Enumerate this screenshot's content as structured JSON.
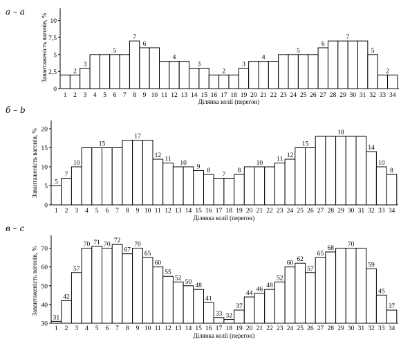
{
  "chart_data": [
    {
      "type": "bar",
      "panel_tag": "а – а",
      "xlabel": "Ділянка колії (перегон)",
      "ylabel": "Завантаженість вагонів, %",
      "ylim": [
        0,
        12
      ],
      "yticks": [
        0,
        2.5,
        5,
        7.5,
        10
      ],
      "ytick_labels": [
        "0",
        "2,5",
        "5",
        "7,5",
        "10"
      ],
      "categories": [
        "1",
        "2",
        "3",
        "4",
        "5",
        "6",
        "7",
        "8",
        "9",
        "10",
        "11",
        "12",
        "13",
        "14",
        "15",
        "16",
        "17",
        "18",
        "19",
        "20",
        "21",
        "22",
        "23",
        "24",
        "25",
        "26",
        "27",
        "28",
        "29",
        "30",
        "31",
        "32",
        "33",
        "34"
      ],
      "values": [
        2,
        2,
        3,
        5,
        5,
        5,
        5,
        7,
        6,
        6,
        4,
        4,
        4,
        3,
        3,
        2,
        2,
        2,
        3,
        4,
        4,
        4,
        5,
        5,
        5,
        5,
        6,
        7,
        7,
        7,
        7,
        5,
        2,
        2
      ],
      "value_labels": [
        {
          "at": 2,
          "text": "2"
        },
        {
          "at": 3,
          "text": "3"
        },
        {
          "at": 6,
          "text": "5"
        },
        {
          "at": 8,
          "text": "7"
        },
        {
          "at": 9,
          "text": "6"
        },
        {
          "at": 12,
          "text": "4"
        },
        {
          "at": 14.5,
          "text": "3"
        },
        {
          "at": 17,
          "text": "2"
        },
        {
          "at": 19,
          "text": "3"
        },
        {
          "at": 21,
          "text": "4"
        },
        {
          "at": 24.5,
          "text": "5"
        },
        {
          "at": 27,
          "text": "6"
        },
        {
          "at": 29.5,
          "text": "7"
        },
        {
          "at": 32,
          "text": "5"
        },
        {
          "at": 33.5,
          "text": "2"
        }
      ]
    },
    {
      "type": "bar",
      "panel_tag": "б – b",
      "xlabel": "Ділянка колії (перегон)",
      "ylabel": "Завантаженість вагонів, %",
      "ylim": [
        0,
        22
      ],
      "yticks": [
        0,
        5,
        10,
        15,
        20
      ],
      "ytick_labels": [
        "0",
        "5",
        "10",
        "15",
        "20"
      ],
      "categories": [
        "1",
        "2",
        "3",
        "4",
        "5",
        "6",
        "7",
        "8",
        "9",
        "10",
        "11",
        "12",
        "13",
        "14",
        "15",
        "16",
        "17",
        "18",
        "19",
        "20",
        "21",
        "22",
        "23",
        "24",
        "25",
        "26",
        "27",
        "28",
        "29",
        "30",
        "31",
        "32",
        "33",
        "34"
      ],
      "values": [
        5,
        7,
        10,
        15,
        15,
        15,
        15,
        17,
        17,
        17,
        12,
        11,
        10,
        10,
        9,
        8,
        7,
        7,
        8,
        10,
        10,
        10,
        11,
        12,
        15,
        15,
        18,
        18,
        18,
        18,
        18,
        14,
        10,
        8
      ],
      "value_labels": [
        {
          "at": 1,
          "text": "5"
        },
        {
          "at": 2,
          "text": "7"
        },
        {
          "at": 3,
          "text": "10"
        },
        {
          "at": 5.5,
          "text": "15"
        },
        {
          "at": 9,
          "text": "17"
        },
        {
          "at": 11,
          "text": "12"
        },
        {
          "at": 12,
          "text": "11"
        },
        {
          "at": 13.5,
          "text": "10"
        },
        {
          "at": 15,
          "text": "9"
        },
        {
          "at": 16,
          "text": "8"
        },
        {
          "at": 17.5,
          "text": "7"
        },
        {
          "at": 19,
          "text": "8"
        },
        {
          "at": 21,
          "text": "10"
        },
        {
          "at": 23,
          "text": "11"
        },
        {
          "at": 24,
          "text": "12"
        },
        {
          "at": 25.5,
          "text": "15"
        },
        {
          "at": 29,
          "text": "18"
        },
        {
          "at": 32,
          "text": "14"
        },
        {
          "at": 33,
          "text": "10"
        },
        {
          "at": 34,
          "text": "8"
        }
      ]
    },
    {
      "type": "bar",
      "panel_tag": "в – c",
      "xlabel": "Ділянка колії (перегон)",
      "ylabel": "Завантаженість вагонів, %",
      "ylim": [
        30,
        75
      ],
      "yticks": [
        30,
        40,
        50,
        60,
        70
      ],
      "ytick_labels": [
        "30",
        "40",
        "50",
        "60",
        "70"
      ],
      "categories": [
        "1",
        "2",
        "3",
        "4",
        "5",
        "6",
        "7",
        "8",
        "9",
        "10",
        "11",
        "12",
        "13",
        "14",
        "15",
        "16",
        "17",
        "18",
        "19",
        "20",
        "21",
        "22",
        "23",
        "24",
        "25",
        "26",
        "27",
        "28",
        "29",
        "30",
        "31",
        "32",
        "33",
        "34"
      ],
      "values": [
        31,
        42,
        57,
        70,
        71,
        70,
        72,
        67,
        70,
        65,
        60,
        55,
        52,
        50,
        48,
        41,
        33,
        32,
        37,
        44,
        46,
        48,
        52,
        60,
        62,
        57,
        65,
        68,
        70,
        70,
        70,
        59,
        45,
        37
      ],
      "value_labels": [
        {
          "at": 1,
          "text": "31"
        },
        {
          "at": 2,
          "text": "42"
        },
        {
          "at": 3,
          "text": "57"
        },
        {
          "at": 4,
          "text": "70"
        },
        {
          "at": 5,
          "text": "71"
        },
        {
          "at": 6,
          "text": "70"
        },
        {
          "at": 7,
          "text": "72"
        },
        {
          "at": 8,
          "text": "67"
        },
        {
          "at": 9,
          "text": "70"
        },
        {
          "at": 10,
          "text": "65"
        },
        {
          "at": 11,
          "text": "60"
        },
        {
          "at": 12,
          "text": "55"
        },
        {
          "at": 13,
          "text": "52"
        },
        {
          "at": 14,
          "text": "50"
        },
        {
          "at": 15,
          "text": "48"
        },
        {
          "at": 16,
          "text": "41"
        },
        {
          "at": 17,
          "text": "33"
        },
        {
          "at": 18,
          "text": "32"
        },
        {
          "at": 19,
          "text": "37"
        },
        {
          "at": 20,
          "text": "44"
        },
        {
          "at": 21,
          "text": "46"
        },
        {
          "at": 22,
          "text": "48"
        },
        {
          "at": 23,
          "text": "52"
        },
        {
          "at": 24,
          "text": "60"
        },
        {
          "at": 25,
          "text": "62"
        },
        {
          "at": 26,
          "text": "57"
        },
        {
          "at": 27,
          "text": "65"
        },
        {
          "at": 28,
          "text": "68"
        },
        {
          "at": 30,
          "text": "70"
        },
        {
          "at": 32,
          "text": "59"
        },
        {
          "at": 33,
          "text": "45"
        },
        {
          "at": 34,
          "text": "37"
        }
      ]
    }
  ]
}
